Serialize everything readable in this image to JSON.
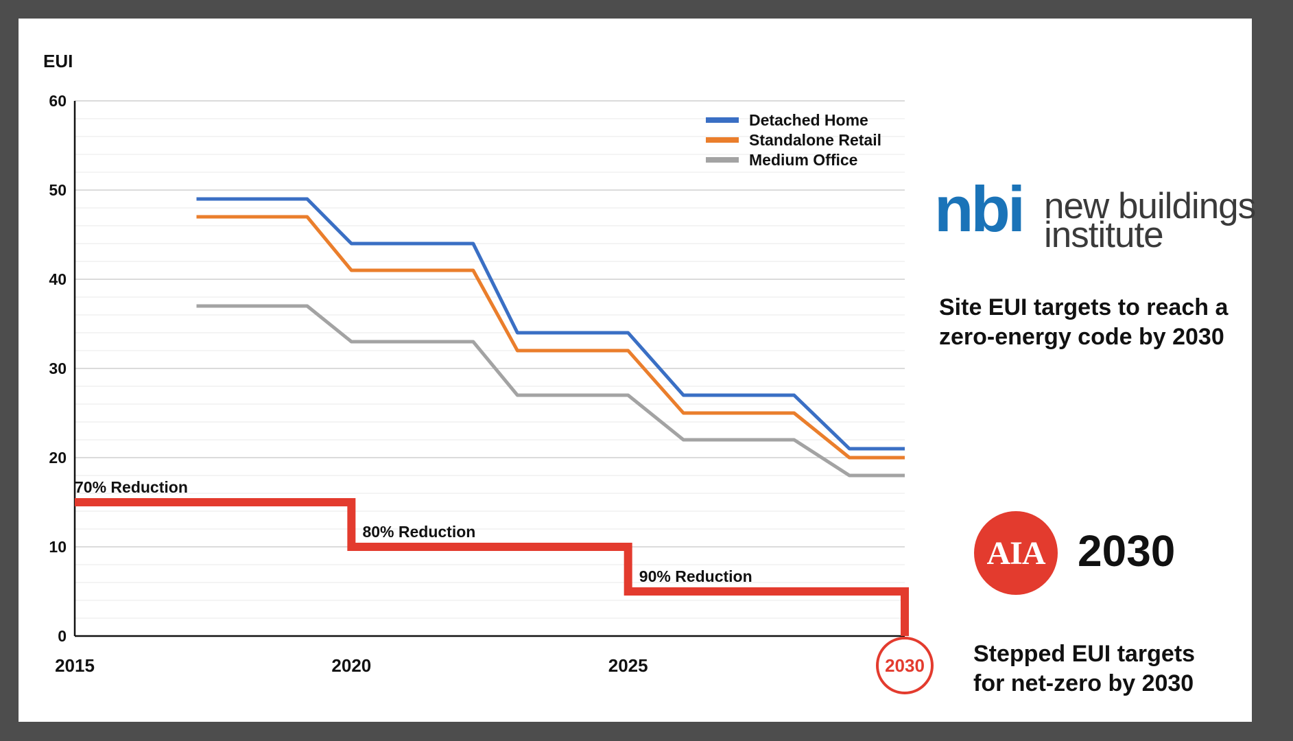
{
  "chart_data": {
    "type": "line",
    "ylabel": "EUI",
    "ylim": [
      0,
      60
    ],
    "yticks": [
      0,
      10,
      20,
      30,
      40,
      50,
      60
    ],
    "xlim": [
      2015,
      2030
    ],
    "xticks": [
      "2015",
      "2020",
      "2025",
      "2030"
    ],
    "highlighted_xtick": "2030",
    "grid": true,
    "legend_position": "top-right",
    "series": [
      {
        "name": "Detached Home",
        "color": "#3a6fc4",
        "x": [
          2017.2,
          2019.2,
          2020.0,
          2022.2,
          2023.0,
          2025.0,
          2026.0,
          2028.0,
          2029.0,
          2030.0
        ],
        "y": [
          49,
          49,
          44,
          44,
          34,
          34,
          27,
          27,
          21,
          21
        ]
      },
      {
        "name": "Standalone Retail",
        "color": "#ea7e2c",
        "x": [
          2017.2,
          2019.2,
          2020.0,
          2022.2,
          2023.0,
          2025.0,
          2026.0,
          2028.0,
          2029.0,
          2030.0
        ],
        "y": [
          47,
          47,
          41,
          41,
          32,
          32,
          25,
          25,
          20,
          20
        ]
      },
      {
        "name": "Medium Office",
        "color": "#a3a3a3",
        "x": [
          2017.2,
          2019.2,
          2020.0,
          2022.2,
          2023.0,
          2025.0,
          2026.0,
          2028.0,
          2029.0,
          2030.0
        ],
        "y": [
          37,
          37,
          33,
          33,
          27,
          27,
          22,
          22,
          18,
          18
        ]
      }
    ],
    "step_target": {
      "color": "#e33b2e",
      "x": [
        2015,
        2020,
        2020,
        2025,
        2025,
        2030,
        2030
      ],
      "y": [
        15,
        15,
        10,
        10,
        5,
        5,
        0
      ],
      "annotations": [
        {
          "text": "70% Reduction",
          "x": 2015.0,
          "y": 15
        },
        {
          "text": "80% Reduction",
          "x": 2020.2,
          "y": 10
        },
        {
          "text": "90% Reduction",
          "x": 2025.2,
          "y": 5
        }
      ]
    }
  },
  "branding": {
    "nbi": {
      "mark": "nbi",
      "name_line1": "new buildings",
      "name_line2": "institute",
      "color": "#1a73b8",
      "caption_line1": "Site EUI targets to reach a",
      "caption_line2": "zero-energy code by 2030"
    },
    "aia": {
      "badge": "AIA",
      "year": "2030",
      "color": "#e33b2e",
      "caption_line1": "Stepped EUI targets",
      "caption_line2": "for net-zero by 2030"
    }
  }
}
